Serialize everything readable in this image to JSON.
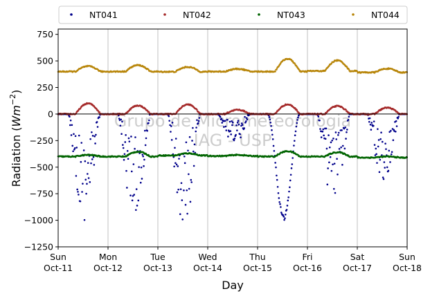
{
  "chart_data": {
    "type": "scatter",
    "title": "",
    "xlabel": "Day",
    "ylabel_main": "Radiation (",
    "ylabel_unit_base": "Wm",
    "ylabel_unit_exp": "−2",
    "ylabel_close": ")",
    "ylim": [
      -1250,
      800
    ],
    "yticks": [
      -1250,
      -1000,
      -750,
      -500,
      -250,
      0,
      250,
      500,
      750
    ],
    "ytick_labels": [
      "−1250",
      "−1000",
      "−750",
      "−500",
      "−250",
      "0",
      "250",
      "500",
      "750"
    ],
    "xlim_days": [
      0,
      7
    ],
    "xticks": [
      {
        "day": 0,
        "line1": "Sun",
        "line2": "Oct-11"
      },
      {
        "day": 1,
        "line1": "Mon",
        "line2": "Oct-12"
      },
      {
        "day": 2,
        "line1": "Tue",
        "line2": "Oct-13"
      },
      {
        "day": 3,
        "line1": "Wed",
        "line2": "Oct-14"
      },
      {
        "day": 4,
        "line1": "Thu",
        "line2": "Oct-15"
      },
      {
        "day": 5,
        "line1": "Fri",
        "line2": "Oct-16"
      },
      {
        "day": 6,
        "line1": "Sat",
        "line2": "Oct-17"
      },
      {
        "day": 7,
        "line1": "Sun",
        "line2": "Oct-18"
      }
    ],
    "grid": "vertical",
    "legend_position": "top, outside, 4 columns",
    "watermark_line1": "Grupo de Micrometeorologia",
    "watermark_line2": "IAG - USP",
    "series": [
      {
        "name": "NT041",
        "color": "#00008b",
        "day_profile": [
          {
            "base": 0,
            "amp": 0
          },
          {
            "base": 0,
            "amp": -1000
          },
          {
            "base": 0,
            "amp": -1000
          },
          {
            "base": 0,
            "amp": -1100
          },
          {
            "base": 0,
            "amp": -300
          },
          {
            "base": 0,
            "amp": -1000
          },
          {
            "base": 0,
            "amp": -880
          },
          {
            "base": 0,
            "amp": -650
          }
        ],
        "note_first_day": true
      },
      {
        "name": "NT042",
        "color": "#a52a2a",
        "day_profile": [
          {
            "base": 0,
            "amp": 100
          },
          {
            "base": 0,
            "amp": 80
          },
          {
            "base": 0,
            "amp": 90
          },
          {
            "base": 0,
            "amp": 40
          },
          {
            "base": 0,
            "amp": 90
          },
          {
            "base": 0,
            "amp": 75
          },
          {
            "base": 0,
            "amp": 60
          }
        ]
      },
      {
        "name": "NT043",
        "color": "#006400",
        "day_profile": [
          {
            "base": -400,
            "amp": 15
          },
          {
            "base": -400,
            "amp": 45
          },
          {
            "base": -390,
            "amp": 20
          },
          {
            "base": -395,
            "amp": 10
          },
          {
            "base": -400,
            "amp": 50
          },
          {
            "base": -400,
            "amp": 40
          },
          {
            "base": -410,
            "amp": 10
          }
        ]
      },
      {
        "name": "NT044",
        "color": "#b8860b",
        "day_profile": [
          {
            "base": 400,
            "amp": 50
          },
          {
            "base": 400,
            "amp": 60
          },
          {
            "base": 398,
            "amp": 45
          },
          {
            "base": 400,
            "amp": 25
          },
          {
            "base": 400,
            "amp": 120
          },
          {
            "base": 405,
            "amp": 100
          },
          {
            "base": 392,
            "amp": 35
          }
        ]
      }
    ]
  }
}
